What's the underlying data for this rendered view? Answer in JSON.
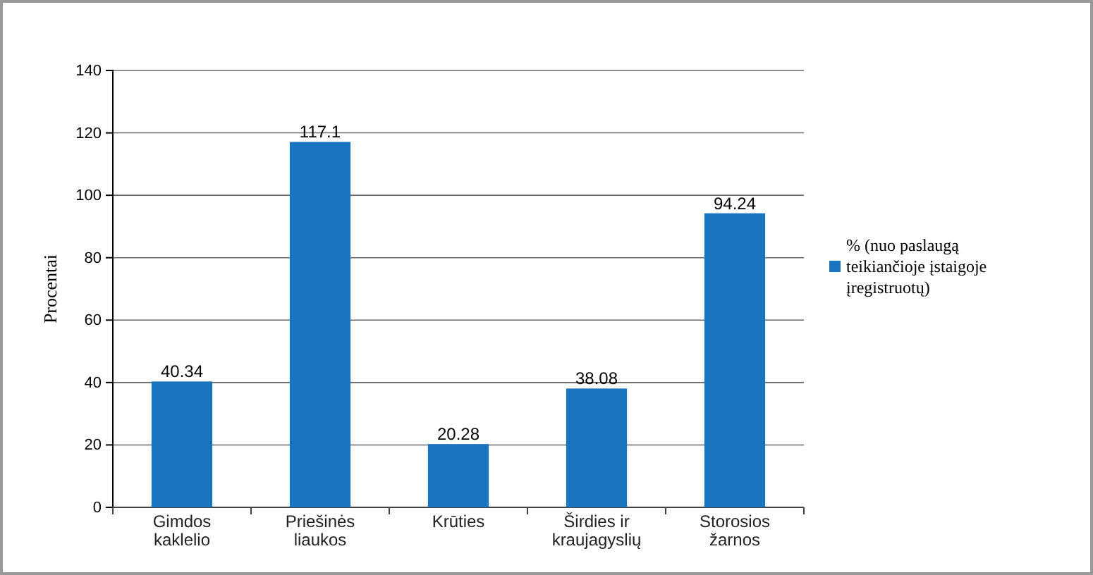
{
  "chart_data": {
    "type": "bar",
    "ylabel": "Procentai",
    "categories": [
      "Gimdos kaklelio",
      "Priešinės liaukos",
      "Krūties",
      "Širdies ir kraujagyslių",
      "Storosios žarnos"
    ],
    "series": [
      {
        "name": "% (nuo paslaugą teikiančioje įstaigoje įregistruotų)",
        "color": "#1a74bf",
        "values": [
          40.34,
          117.1,
          20.28,
          38.08,
          94.24
        ]
      }
    ],
    "ylim": [
      0,
      140
    ],
    "yticks": [
      0,
      20,
      40,
      60,
      80,
      100,
      120,
      140
    ],
    "grid": "y",
    "legend": "right",
    "data_labels": true
  }
}
